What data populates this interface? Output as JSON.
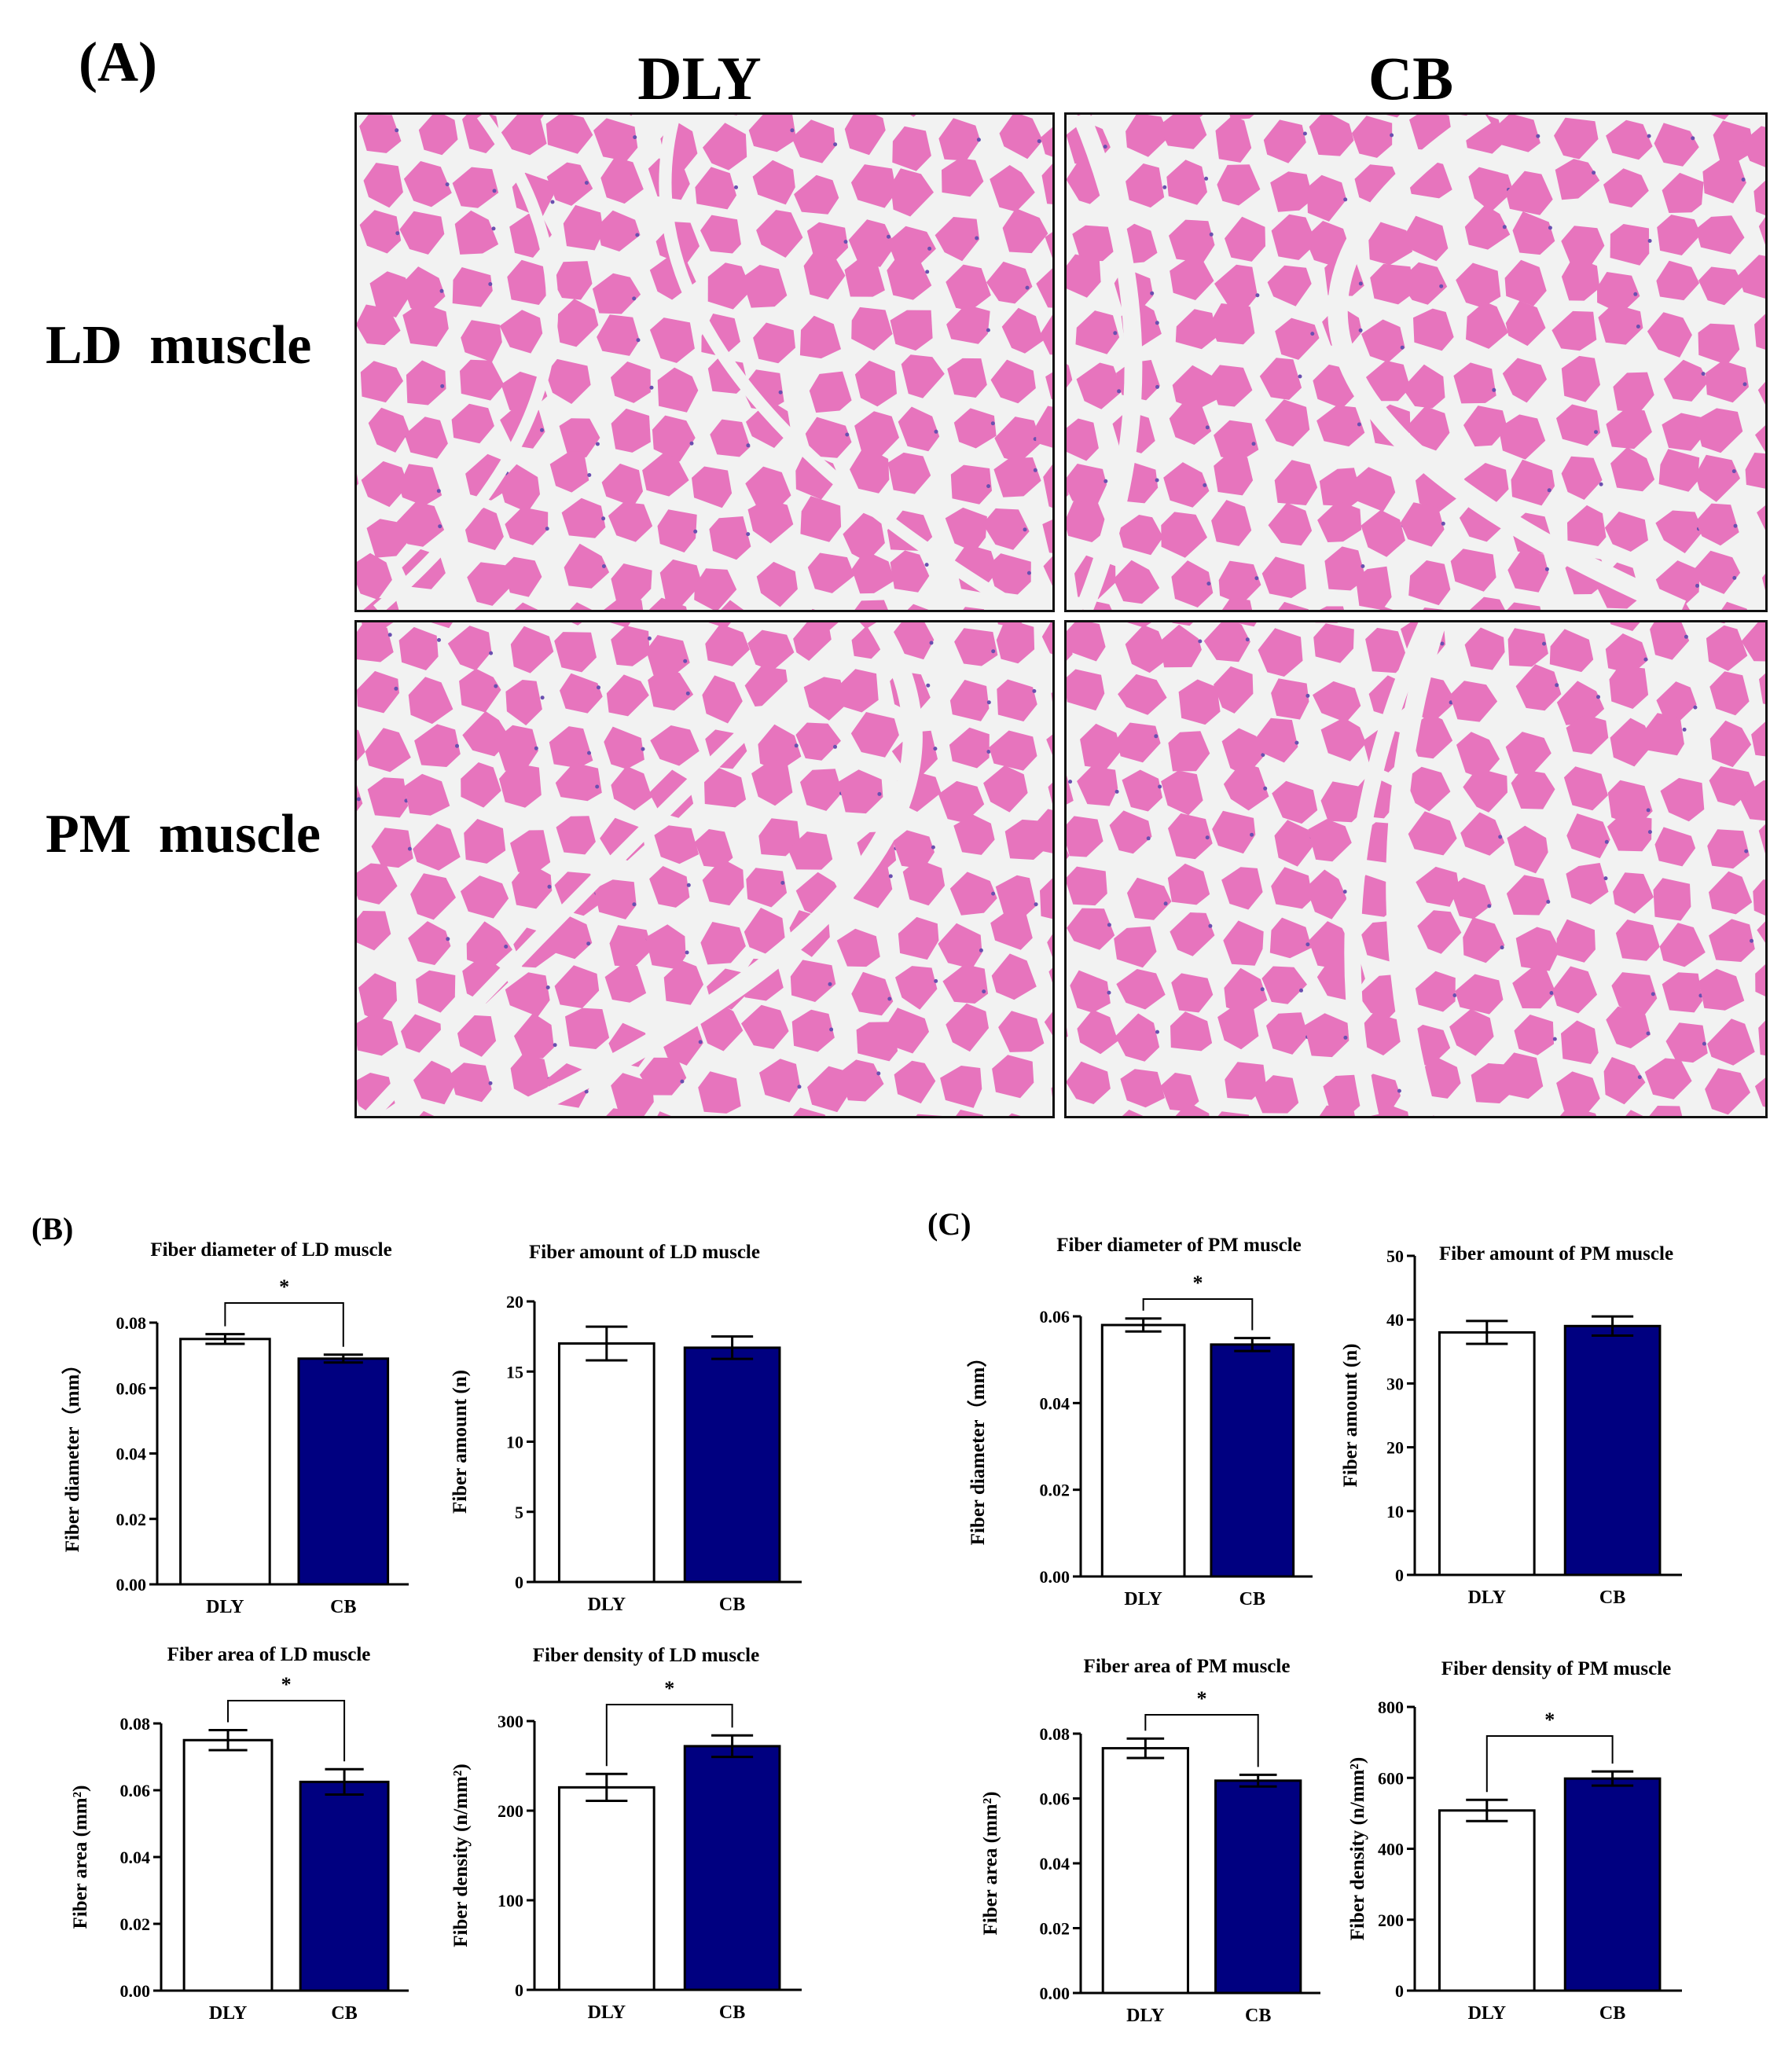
{
  "figure": {
    "panel_a_label": "(A)",
    "panel_b_label": "(B)",
    "panel_c_label": "(C)",
    "columns": [
      "DLY",
      "CB"
    ],
    "rows": [
      "LD  muscle",
      "PM  muscle"
    ],
    "micrographs": [
      {
        "row": "LD  muscle",
        "column": "DLY",
        "description": "H&E-stained muscle fiber cross-section"
      },
      {
        "row": "LD  muscle",
        "column": "CB",
        "description": "H&E-stained muscle fiber cross-section"
      },
      {
        "row": "PM  muscle",
        "column": "DLY",
        "description": "H&E-stained muscle fiber cross-section"
      },
      {
        "row": "PM  muscle",
        "column": "CB",
        "description": "H&E-stained muscle fiber cross-section"
      }
    ],
    "colors": {
      "fiber": "#e774bd",
      "connective": "#f2f2f2",
      "nuclei": "#6a4fb0",
      "bar_cb": "#000080",
      "bar_dly": "#ffffff"
    }
  },
  "chart_data": [
    {
      "id": "b1",
      "type": "bar",
      "title": "Fiber diameter of LD muscle",
      "ylabel": "Fiber diameter（mm）",
      "categories": [
        "DLY",
        "CB"
      ],
      "values": [
        0.075,
        0.069
      ],
      "errors": [
        0.0015,
        0.0012
      ],
      "ylim": [
        0,
        0.08
      ],
      "yticks": [
        "0.00",
        "0.02",
        "0.04",
        "0.06",
        "0.08"
      ],
      "significance": "*"
    },
    {
      "id": "b2",
      "type": "bar",
      "title": "Fiber amount of LD muscle",
      "ylabel": "Fiber amount (n)",
      "categories": [
        "DLY",
        "CB"
      ],
      "values": [
        17.0,
        16.7
      ],
      "errors": [
        1.2,
        0.8
      ],
      "ylim": [
        0,
        20
      ],
      "yticks": [
        "0",
        "5",
        "10",
        "15",
        "20"
      ],
      "significance": ""
    },
    {
      "id": "b3",
      "type": "bar",
      "title": "Fiber area of LD muscle",
      "ylabel": "Fiber area (mm²)",
      "categories": [
        "DLY",
        "CB"
      ],
      "values": [
        0.075,
        0.0625
      ],
      "errors": [
        0.003,
        0.0038
      ],
      "ylim": [
        0,
        0.08
      ],
      "yticks": [
        "0.00",
        "0.02",
        "0.04",
        "0.06",
        "0.08"
      ],
      "significance": "*"
    },
    {
      "id": "b4",
      "type": "bar",
      "title": "Fiber density of LD muscle",
      "ylabel": "Fiber density (n/mm²)",
      "categories": [
        "DLY",
        "CB"
      ],
      "values": [
        226,
        272
      ],
      "errors": [
        15,
        12
      ],
      "ylim": [
        0,
        300
      ],
      "yticks": [
        "0",
        "100",
        "200",
        "300"
      ],
      "significance": "*"
    },
    {
      "id": "c1",
      "type": "bar",
      "title": "Fiber diameter of PM muscle",
      "ylabel": "Fiber diameter（mm）",
      "categories": [
        "DLY",
        "CB"
      ],
      "values": [
        0.058,
        0.0535
      ],
      "errors": [
        0.0015,
        0.0015
      ],
      "ylim": [
        0,
        0.06
      ],
      "yticks": [
        "0.00",
        "0.02",
        "0.04",
        "0.06"
      ],
      "significance": "*"
    },
    {
      "id": "c2",
      "type": "bar",
      "title": "Fiber amount of PM muscle",
      "ylabel": "Fiber amount (n)",
      "categories": [
        "DLY",
        "CB"
      ],
      "values": [
        38.0,
        39.0
      ],
      "errors": [
        1.8,
        1.5
      ],
      "ylim": [
        0,
        50
      ],
      "yticks": [
        "0",
        "10",
        "20",
        "30",
        "40",
        "50"
      ],
      "significance": ""
    },
    {
      "id": "c3",
      "type": "bar",
      "title": "Fiber area of PM muscle",
      "ylabel": "Fiber area (mm²)",
      "categories": [
        "DLY",
        "CB"
      ],
      "values": [
        0.0755,
        0.0655
      ],
      "errors": [
        0.003,
        0.0018
      ],
      "ylim": [
        0,
        0.08
      ],
      "yticks": [
        "0.00",
        "0.02",
        "0.04",
        "0.06",
        "0.08"
      ],
      "significance": "*"
    },
    {
      "id": "c4",
      "type": "bar",
      "title": "Fiber density of PM muscle",
      "ylabel": "Fiber density (n/mm²)",
      "categories": [
        "DLY",
        "CB"
      ],
      "values": [
        508,
        598
      ],
      "errors": [
        30,
        20
      ],
      "ylim": [
        0,
        800
      ],
      "yticks": [
        "0",
        "200",
        "400",
        "600",
        "800"
      ],
      "significance": "*"
    }
  ]
}
